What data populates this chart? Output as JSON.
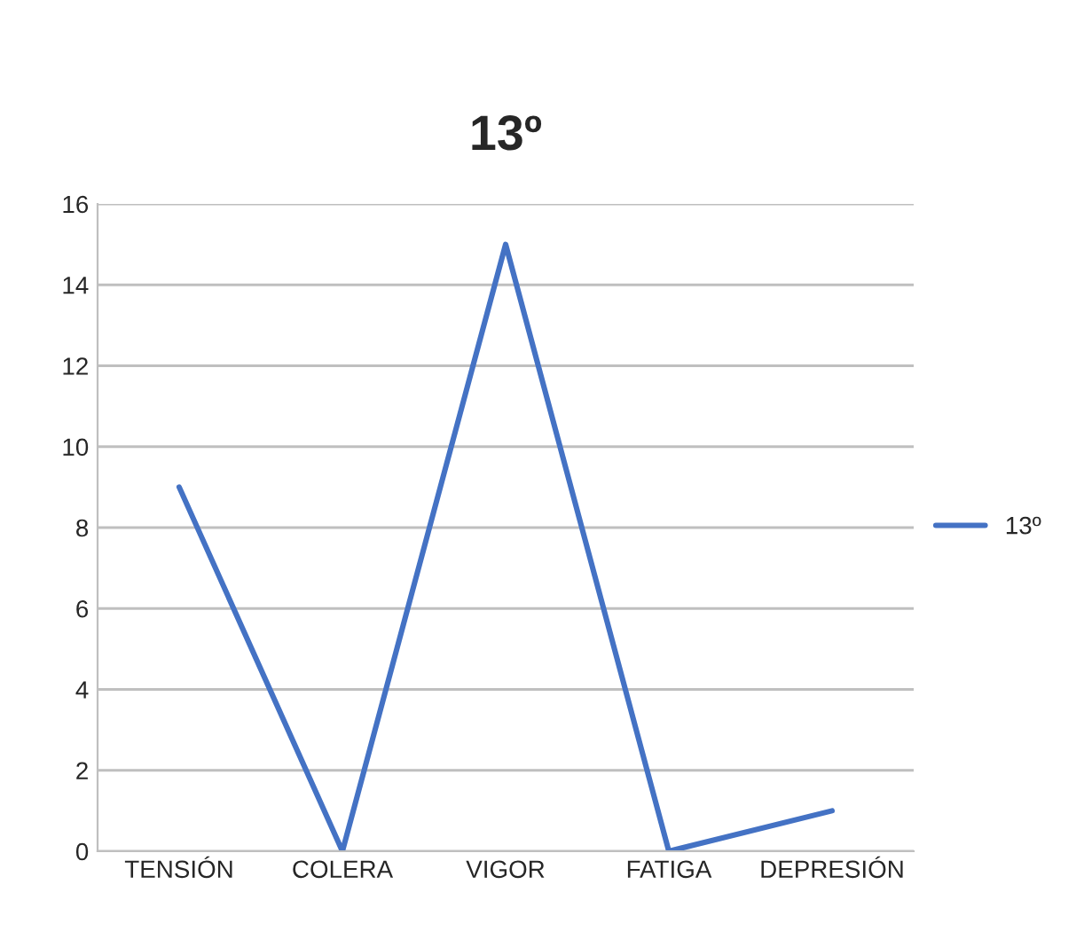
{
  "chart_data": {
    "type": "line",
    "title": "13º",
    "categories": [
      "TENSIÓN",
      "COLERA",
      "VIGOR",
      "FATIGA",
      "DEPRESIÓN"
    ],
    "series": [
      {
        "name": "13º",
        "color": "#4472c4",
        "values": [
          9,
          0,
          15,
          0,
          1
        ]
      }
    ],
    "ylim": [
      0,
      16
    ],
    "yticks": [
      0,
      2,
      4,
      6,
      8,
      10,
      12,
      14,
      16
    ],
    "grid": "y",
    "legend": "right",
    "marker": "none",
    "line_style": "solid"
  }
}
